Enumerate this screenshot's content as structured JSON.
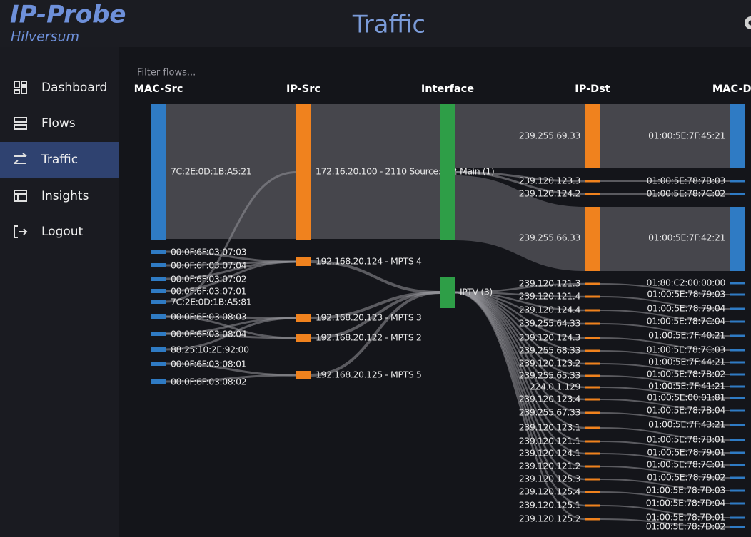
{
  "header": {
    "app_name": "IP-Probe",
    "location": "Hilversum",
    "page_title": "Traffic"
  },
  "nav": [
    {
      "label": "Dashboard",
      "active": false
    },
    {
      "label": "Flows",
      "active": false
    },
    {
      "label": "Traffic",
      "active": true
    },
    {
      "label": "Insights",
      "active": false
    },
    {
      "label": "Logout",
      "active": false
    }
  ],
  "filter": {
    "placeholder": "Filter flows..."
  },
  "sankey": {
    "columns": [
      {
        "title": "MAC-Src",
        "color": "#2f7bc4",
        "nodes": [
          "7C:2E:0D:1B:A5:21",
          "00:0F:6F:03:07:03",
          "00:0F:6F:03:07:04",
          "00:0F:6F:03:07:02",
          "00:0F:6F:03:07:01",
          "7C:2E:0D:1B:A5:81",
          "00:0F:6F:03:08:03",
          "00:0F:6F:03:08:04",
          "88:25:10:2E:92:00",
          "00:0F:6F:03:08:01",
          "00:0F:6F:03:08:02"
        ]
      },
      {
        "title": "IP-Src",
        "color": "#f0821e",
        "nodes": [
          "172.16.20.100 - 2110 Source: 1/2",
          "192.168.20.124 - MPTS 4",
          "192.168.20.123 - MPTS 3",
          "192.168.20.122 - MPTS 2",
          "192.168.20.125 - MPTS 5"
        ]
      },
      {
        "title": "Interface",
        "color": "#2e9e47",
        "nodes": [
          "Main (1)",
          "IPTV (3)"
        ]
      },
      {
        "title": "IP-Dst",
        "color": "#f0821e",
        "nodes": [
          "239.255.69.33",
          "239.120.123.3",
          "239.120.124.2",
          "239.255.66.33",
          "239.120.121.3",
          "239.120.121.4",
          "239.120.124.4",
          "239.255.64.33",
          "239.120.124.3",
          "239.255.68.33",
          "239.120.123.2",
          "239.255.65.33",
          "224.0.1.129",
          "239.120.123.4",
          "239.255.67.33",
          "239.120.123.1",
          "239.120.121.1",
          "239.120.124.1",
          "239.120.121.2",
          "239.120.125.3",
          "239.120.125.4",
          "239.120.125.1",
          "239.120.125.2"
        ]
      },
      {
        "title": "MAC-Dst",
        "color": "#2f7bc4",
        "nodes": [
          "01:00:5E:7F:45:21",
          "01:00:5E:78:7B:03",
          "01:00:5E:78:7C:02",
          "01:00:5E:7F:42:21",
          "01:80:C2:00:00:00",
          "01:00:5E:78:79:03",
          "01:00:5E:78:79:04",
          "01:00:5E:78:7C:04",
          "01:00:5E:7F:40:21",
          "01:00:5E:78:7C:03",
          "01:00:5E:7F:44:21",
          "01:00:5E:78:7B:02",
          "01:00:5E:7F:41:21",
          "01:00:5E:00:01:81",
          "01:00:5E:78:7B:04",
          "01:00:5E:7F:43:21",
          "01:00:5E:78:7B:01",
          "01:00:5E:78:79:01",
          "01:00:5E:78:7C:01",
          "01:00:5E:78:79:02",
          "01:00:5E:78:7D:03",
          "01:00:5E:78:7D:04",
          "01:00:5E:78:7D:01",
          "01:00:5E:78:7D:02"
        ]
      }
    ]
  }
}
